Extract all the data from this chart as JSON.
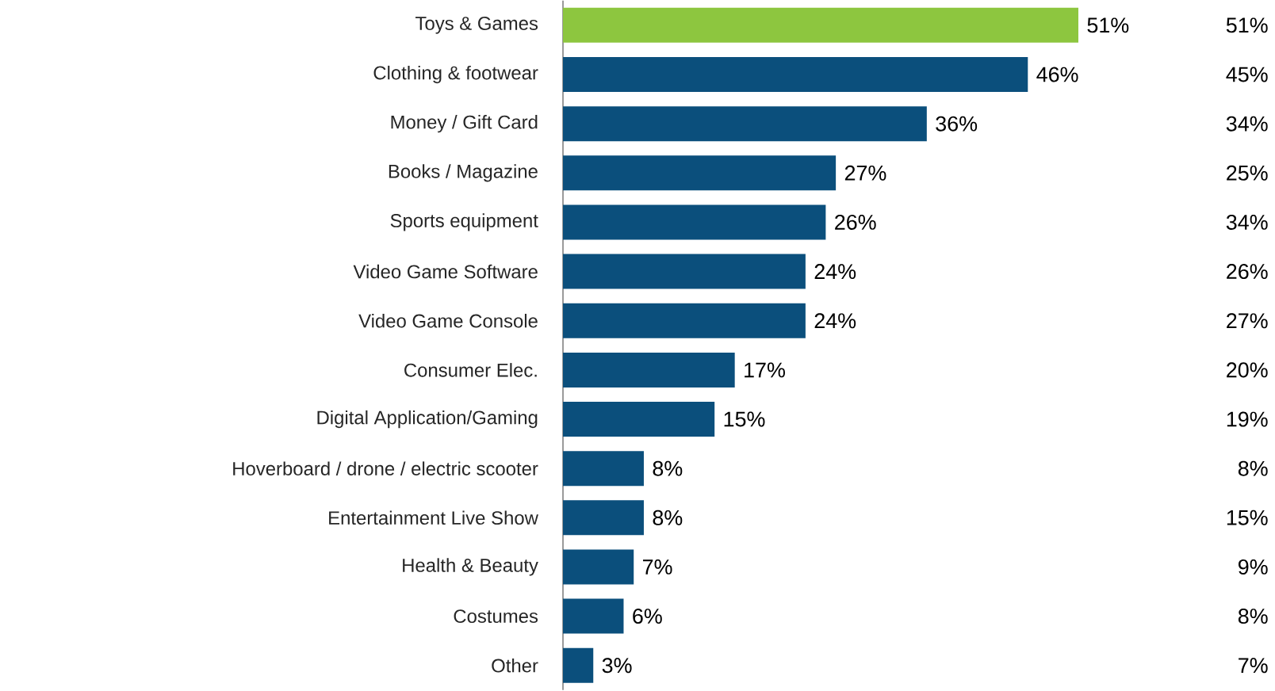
{
  "chart_data": {
    "type": "bar",
    "orientation": "horizontal",
    "categories": [
      "Toys & Games",
      "Clothing & footwear",
      "Money / Gift Card",
      "Books / Magazine",
      "Sports equipment",
      "Video Game Software",
      "Video Game Console",
      "Consumer Elec.",
      "Digital Application/Gaming",
      "Hoverboard / drone / electric scooter",
      "Entertainment Live Show",
      "Health & Beauty",
      "Costumes",
      "Other"
    ],
    "values": [
      51,
      46,
      36,
      27,
      26,
      24,
      24,
      17,
      15,
      8,
      8,
      7,
      6,
      3
    ],
    "value_labels": [
      "51%",
      "46%",
      "36%",
      "27%",
      "26%",
      "24%",
      "24%",
      "17%",
      "15%",
      "8%",
      "8%",
      "7%",
      "6%",
      "3%"
    ],
    "colors": [
      "#8dc63f",
      "#0b4f7c",
      "#0b4f7c",
      "#0b4f7c",
      "#0b4f7c",
      "#0b4f7c",
      "#0b4f7c",
      "#0b4f7c",
      "#0b4f7c",
      "#0b4f7c",
      "#0b4f7c",
      "#0b4f7c",
      "#0b4f7c",
      "#0b4f7c"
    ],
    "annotations": [
      "51%",
      "45%",
      "34%",
      "25%",
      "34%",
      "26%",
      "27%",
      "20%",
      "19%",
      "8%",
      "15%",
      "9%",
      "8%",
      "7%"
    ]
  }
}
